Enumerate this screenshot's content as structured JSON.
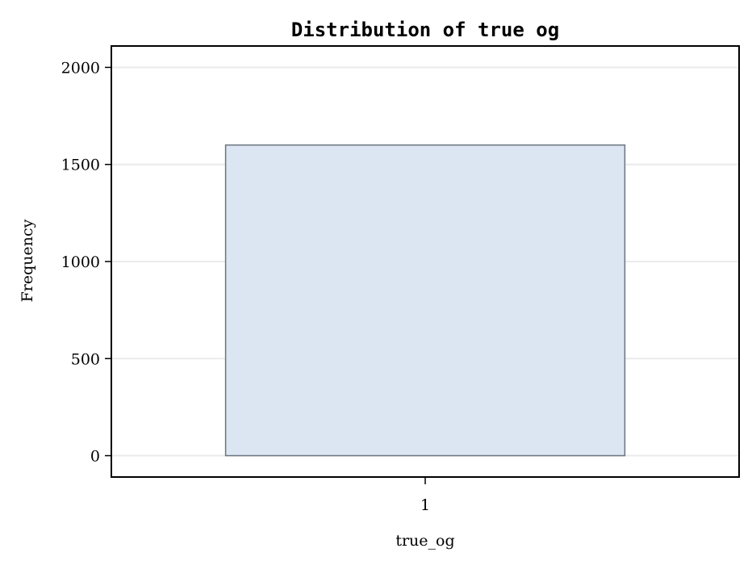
{
  "chart_data": {
    "type": "bar",
    "title": "Distribution of true og",
    "xlabel": "true_og",
    "ylabel": "Frequency",
    "categories": [
      "1"
    ],
    "values": [
      1600
    ],
    "ylim": [
      -110,
      2110
    ],
    "yticks": [
      0,
      500,
      1000,
      1500,
      2000
    ],
    "grid": true,
    "colors": {
      "bar_fill": "#dce6f2",
      "bar_stroke": "#6b7580",
      "grid": "#ebebeb",
      "axis": "#000000"
    }
  }
}
